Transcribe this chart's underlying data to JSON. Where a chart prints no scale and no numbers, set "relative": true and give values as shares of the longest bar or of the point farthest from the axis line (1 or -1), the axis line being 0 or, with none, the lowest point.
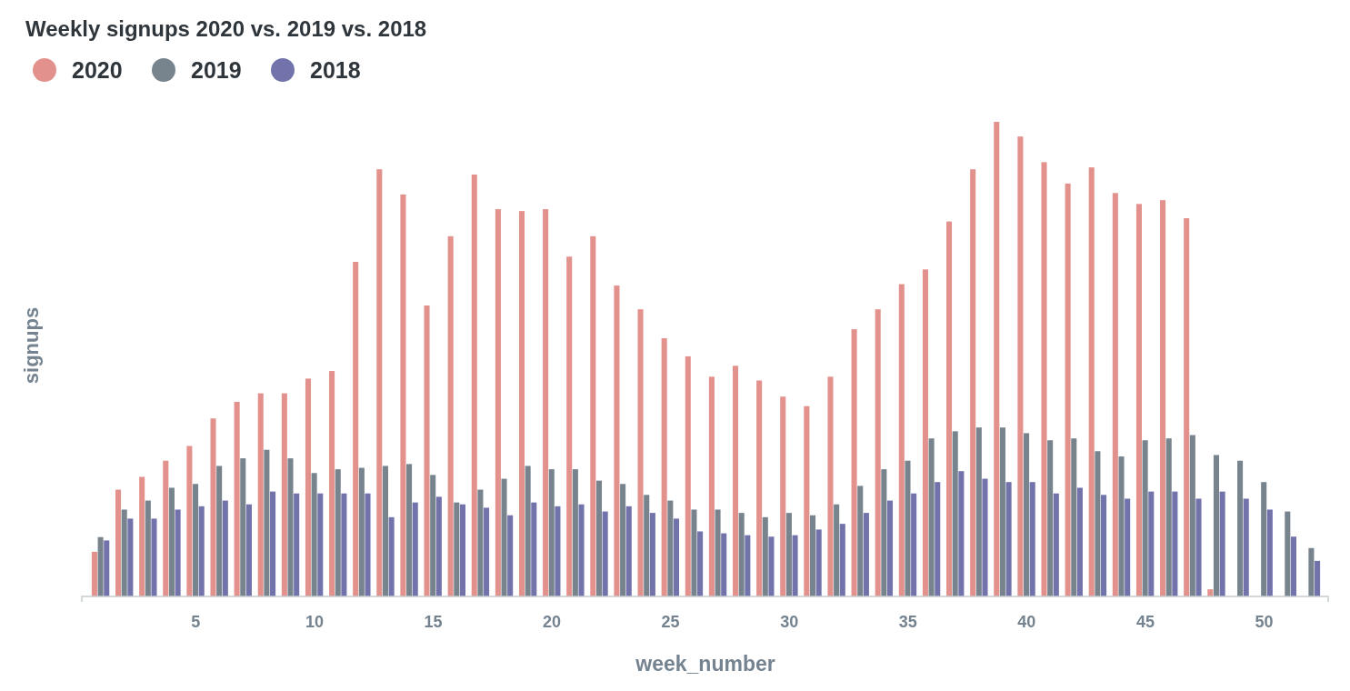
{
  "chart_data": {
    "type": "bar",
    "title": "Weekly signups 2020 vs. 2019 vs. 2018",
    "xlabel": "week_number",
    "ylabel": "signups",
    "x": [
      1,
      2,
      3,
      4,
      5,
      6,
      7,
      8,
      9,
      10,
      11,
      12,
      13,
      14,
      15,
      16,
      17,
      18,
      19,
      20,
      21,
      22,
      23,
      24,
      25,
      26,
      27,
      28,
      29,
      30,
      31,
      32,
      33,
      34,
      35,
      36,
      37,
      38,
      39,
      40,
      41,
      42,
      43,
      44,
      45,
      46,
      47,
      48,
      49,
      50,
      51,
      52
    ],
    "xlim": [
      0.2,
      52.7
    ],
    "xticks": [
      5,
      10,
      15,
      20,
      25,
      30,
      35,
      40,
      45,
      50
    ],
    "relative": true,
    "legend": "top left",
    "series": [
      {
        "name": "2020",
        "color": "#e3918d",
        "values": [
          0.094,
          0.225,
          0.252,
          0.286,
          0.317,
          0.375,
          0.41,
          0.428,
          0.428,
          0.459,
          0.475,
          0.705,
          0.9,
          0.847,
          0.613,
          0.759,
          0.889,
          0.816,
          0.812,
          0.816,
          0.716,
          0.759,
          0.655,
          0.605,
          0.544,
          0.506,
          0.463,
          0.486,
          0.455,
          0.421,
          0.401,
          0.463,
          0.563,
          0.605,
          0.658,
          0.689,
          0.79,
          0.9,
          1,
          0.969,
          0.915,
          0.87,
          0.904,
          0.85,
          0.827,
          0.835,
          0.797,
          0.015,
          null,
          null,
          null,
          null
        ]
      },
      {
        "name": "2019",
        "color": "#77848e",
        "values": [
          0.125,
          0.183,
          0.202,
          0.229,
          0.237,
          0.275,
          0.291,
          0.309,
          0.291,
          0.26,
          0.268,
          0.271,
          0.275,
          0.279,
          0.256,
          0.198,
          0.225,
          0.248,
          0.275,
          0.268,
          0.268,
          0.244,
          0.237,
          0.214,
          0.202,
          0.183,
          0.183,
          0.176,
          0.167,
          0.176,
          0.171,
          0.194,
          0.233,
          0.268,
          0.286,
          0.333,
          0.348,
          0.356,
          0.356,
          0.344,
          0.329,
          0.333,
          0.306,
          0.295,
          0.329,
          0.333,
          0.34,
          0.298,
          0.286,
          0.241,
          0.179,
          0.102
        ]
      },
      {
        "name": "2018",
        "color": "#7373ac",
        "values": [
          0.118,
          0.164,
          0.164,
          0.183,
          0.19,
          0.202,
          0.194,
          0.221,
          0.217,
          0.217,
          0.217,
          0.217,
          0.167,
          0.198,
          0.21,
          0.194,
          0.187,
          0.171,
          0.198,
          0.19,
          0.194,
          0.179,
          0.19,
          0.176,
          0.164,
          0.137,
          0.133,
          0.129,
          0.126,
          0.129,
          0.141,
          0.153,
          0.176,
          0.202,
          0.217,
          0.241,
          0.264,
          0.248,
          0.241,
          0.241,
          0.217,
          0.229,
          0.214,
          0.206,
          0.221,
          0.221,
          0.206,
          0.221,
          0.206,
          0.183,
          0.126,
          0.075
        ]
      }
    ]
  }
}
